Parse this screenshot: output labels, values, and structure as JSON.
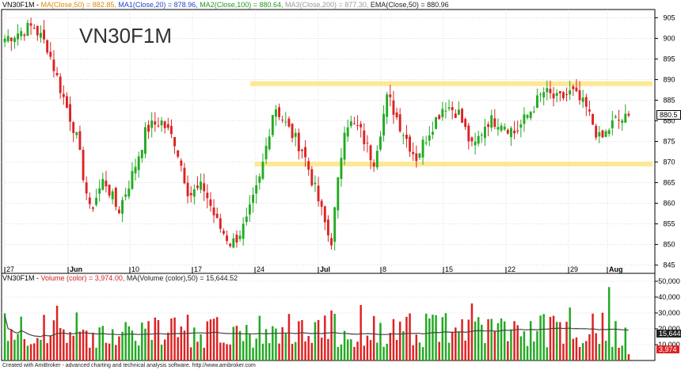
{
  "price_header": {
    "symbol": "VN30F1M",
    "ma50": "MA(Close,50) = 882.85,",
    "ma1": "MA1(Close,20) = 878.96,",
    "ma2": "MA2(Close,100) = 880.64,",
    "ma3": "MA3(Close,200) = 877.30,",
    "ema": "EMA(Close,50) = 880.96"
  },
  "chart_title": "VN30F1M",
  "volume_header": {
    "symbol": "VN30F1M - ",
    "volume": "Volume (color) = 3,974.00,",
    "ma": "MA(Volume (color),50) = 15,644.52"
  },
  "footer": "Created with AmiBroker - advanced charting and technical analysis software. http://www.amibroker.com",
  "colors": {
    "up": "#22aa22",
    "down": "#dd2222",
    "band": "#ffe070",
    "ma_line": "#444444",
    "grid": "#c8c8c8",
    "header_ma50": "#e08a00",
    "header_ma1": "#2244cc",
    "header_ma2": "#229922",
    "header_ma3": "#9a9a9a",
    "header_ema": "#222222",
    "volume_label": "#cc2222"
  },
  "chart_data": {
    "type": "candlestick",
    "x_tick_labels": [
      "27",
      "Jun",
      "10",
      "17",
      "24",
      "Jul",
      "8",
      "15",
      "22",
      "29",
      "Aug"
    ],
    "y_ticks": [
      845,
      850,
      855,
      860,
      865,
      870,
      875,
      880,
      885,
      890,
      895,
      900,
      905
    ],
    "ylim": [
      843,
      907
    ],
    "last_price": "880.5",
    "resistance": 889,
    "support": 869.5,
    "anchors": [
      {
        "day": 0,
        "close": 900
      },
      {
        "day": 2,
        "close": 903
      },
      {
        "day": 3,
        "close": 898
      },
      {
        "day": 4,
        "close": 887
      },
      {
        "day": 5,
        "close": 877
      },
      {
        "day": 6,
        "close": 858
      },
      {
        "day": 7,
        "close": 866
      },
      {
        "day": 8,
        "close": 858
      },
      {
        "day": 9,
        "close": 867
      },
      {
        "day": 10,
        "close": 878
      },
      {
        "day": 11,
        "close": 880
      },
      {
        "day": 12,
        "close": 875
      },
      {
        "day": 13,
        "close": 862
      },
      {
        "day": 14,
        "close": 864
      },
      {
        "day": 15,
        "close": 855
      },
      {
        "day": 16,
        "close": 850
      },
      {
        "day": 17,
        "close": 855
      },
      {
        "day": 18,
        "close": 866
      },
      {
        "day": 19,
        "close": 884
      },
      {
        "day": 20,
        "close": 878
      },
      {
        "day": 21,
        "close": 873
      },
      {
        "day": 22,
        "close": 862
      },
      {
        "day": 23,
        "close": 850
      },
      {
        "day": 24,
        "close": 880
      },
      {
        "day": 25,
        "close": 878
      },
      {
        "day": 26,
        "close": 870
      },
      {
        "day": 27,
        "close": 886
      },
      {
        "day": 28,
        "close": 878
      },
      {
        "day": 29,
        "close": 871
      },
      {
        "day": 30,
        "close": 878
      },
      {
        "day": 31,
        "close": 884
      },
      {
        "day": 32,
        "close": 882
      },
      {
        "day": 33,
        "close": 873
      },
      {
        "day": 34,
        "close": 880
      },
      {
        "day": 35,
        "close": 880
      },
      {
        "day": 36,
        "close": 877
      },
      {
        "day": 37,
        "close": 882
      },
      {
        "day": 38,
        "close": 887
      },
      {
        "day": 39,
        "close": 885
      },
      {
        "day": 40,
        "close": 887
      },
      {
        "day": 41,
        "close": 883
      },
      {
        "day": 42,
        "close": 875
      },
      {
        "day": 43,
        "close": 880
      },
      {
        "day": 44,
        "close": 880.5
      }
    ],
    "volume_ylim": [
      0,
      55000
    ],
    "volume_y_ticks": [
      10000,
      20000,
      30000,
      40000,
      50000
    ],
    "volume_last": "3,974",
    "volume_ma_last": "15,644.5"
  }
}
